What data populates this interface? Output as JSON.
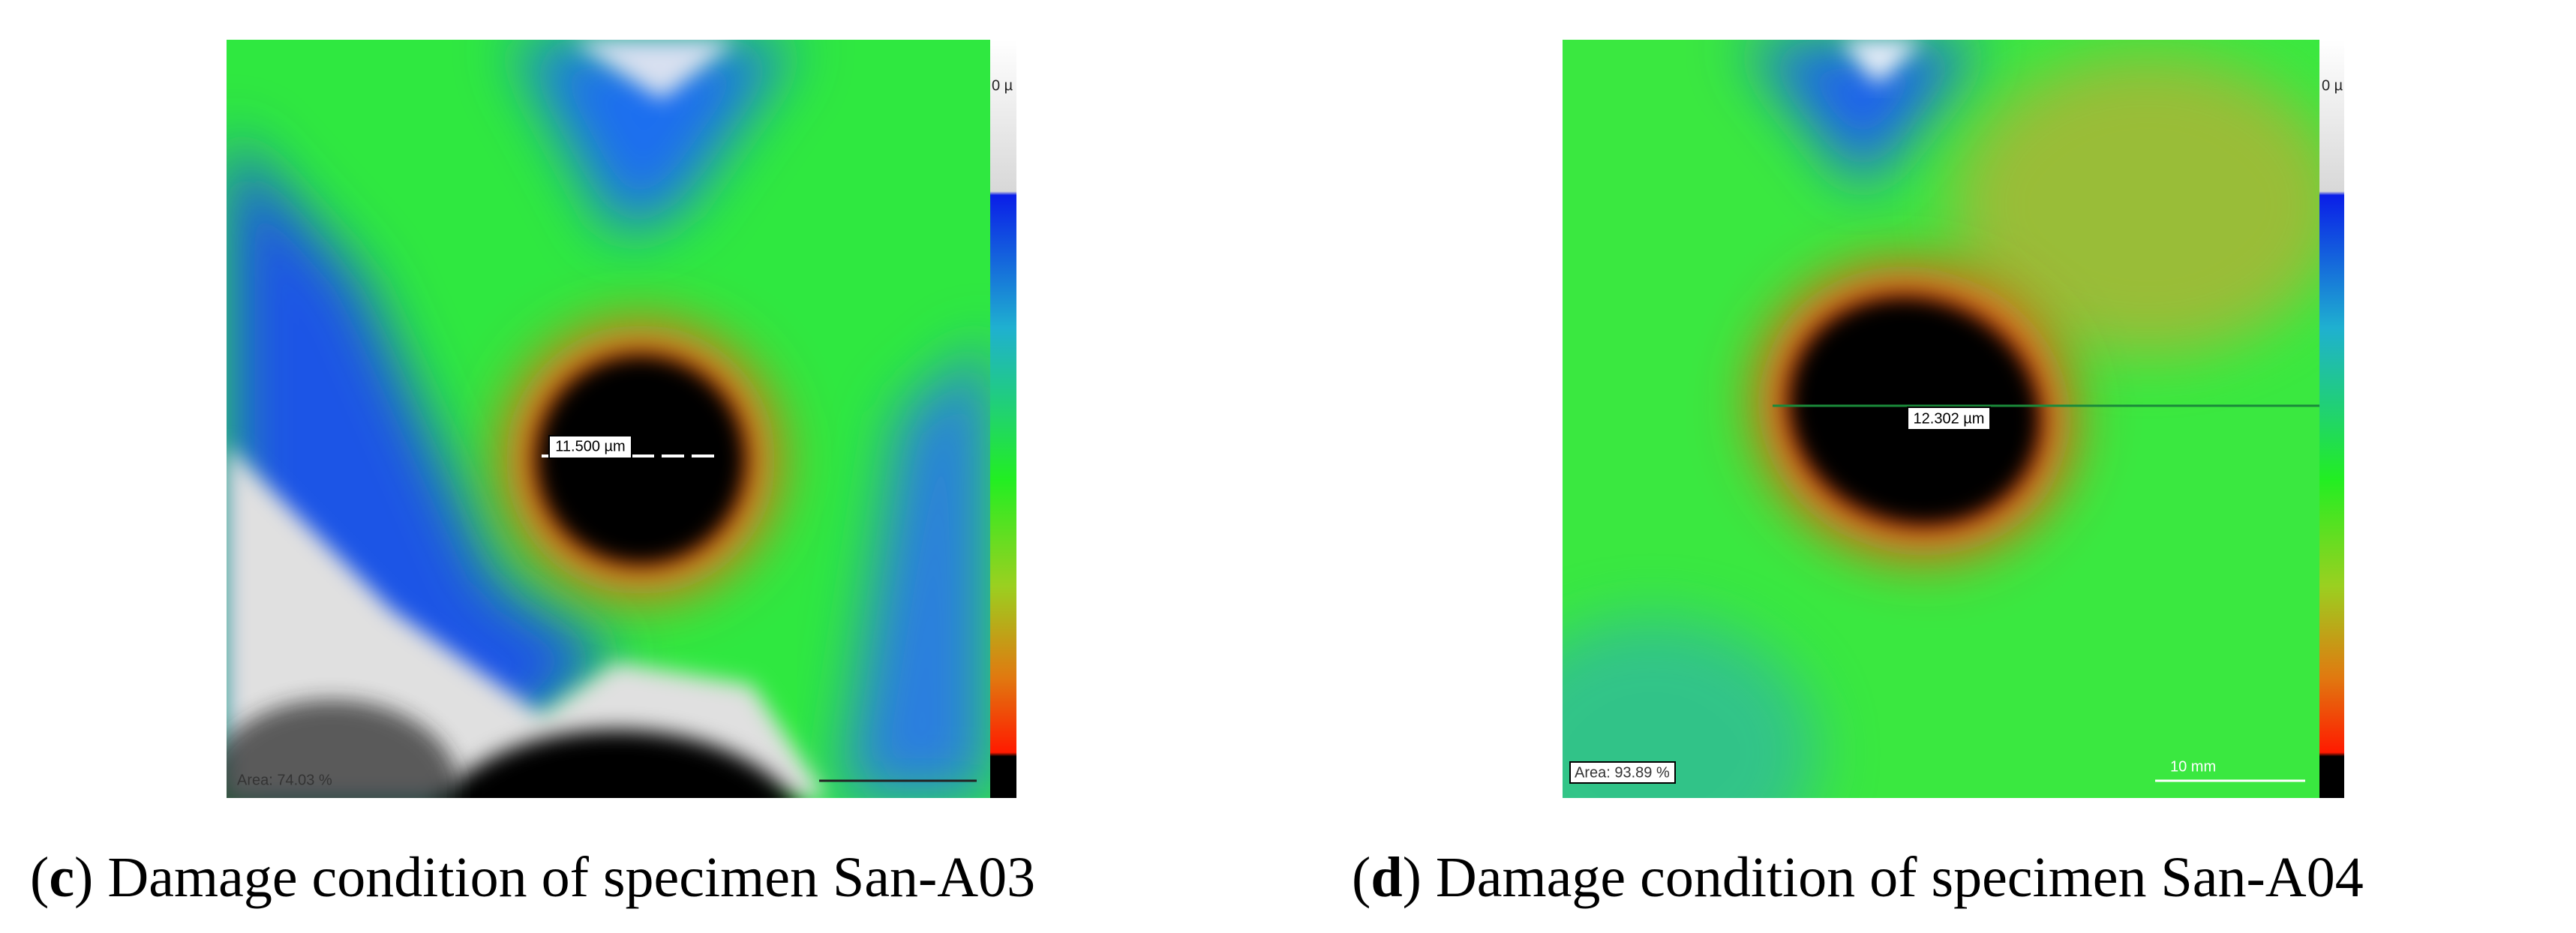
{
  "figures": [
    {
      "label_parts": [
        "(",
        "c",
        ")"
      ],
      "caption": " Damage condition of specimen San-A03",
      "measurement": "11.500 µm",
      "area": "Area: 74.03 %",
      "scale_top": "0 µ"
    },
    {
      "label_parts": [
        "(",
        "d",
        ")"
      ],
      "caption": " Damage condition of specimen San-A04",
      "measurement": "12.302 µm",
      "area": "Area: 93.89 %",
      "scale_top": "0 µ",
      "scale_bar": "10 mm"
    }
  ]
}
